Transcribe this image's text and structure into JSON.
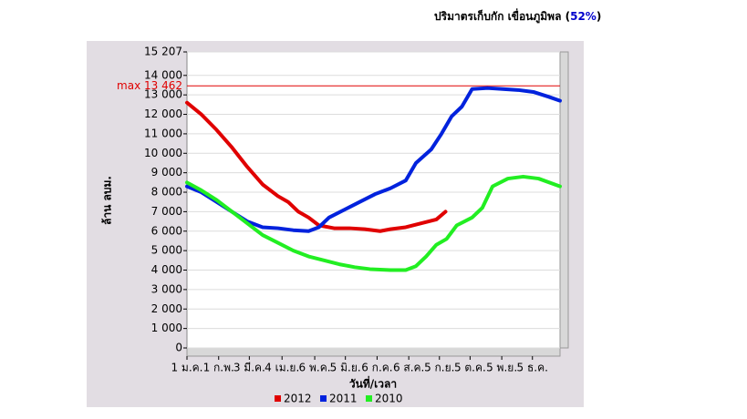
{
  "chart_data": {
    "type": "line",
    "title_parts": [
      "ปริมาตรเก็บกัก เขื่อนภูมิพล (",
      "52%",
      ")"
    ],
    "ylabel": "ล้าน ลบม.",
    "xlabel": "วันที่/เวลา",
    "xlim": [
      1,
      366
    ],
    "xticks": [
      {
        "value": 1,
        "label": "1 ม.ค."
      },
      {
        "value": 32,
        "label": "1 ก.พ."
      },
      {
        "value": 62,
        "label": "3 มี.ค."
      },
      {
        "value": 94,
        "label": "4 เม.ย."
      },
      {
        "value": 126,
        "label": "6 พ.ค."
      },
      {
        "value": 156,
        "label": "5 มิ.ย."
      },
      {
        "value": 187,
        "label": "6 ก.ค."
      },
      {
        "value": 218,
        "label": "6 ส.ค."
      },
      {
        "value": 248,
        "label": "5 ก.ย."
      },
      {
        "value": 278,
        "label": "5 ต.ค."
      },
      {
        "value": 309,
        "label": "5 พ.ย."
      },
      {
        "value": 339,
        "label": "5 ธ.ค."
      }
    ],
    "ylim": [
      0,
      15207
    ],
    "yticks": [
      0,
      {
        "value": 1000,
        "label": "1 000"
      },
      {
        "value": 2000,
        "label": "2 000"
      },
      {
        "value": 3000,
        "label": "3 000"
      },
      {
        "value": 4000,
        "label": "4 000"
      },
      {
        "value": 5000,
        "label": "5 000"
      },
      {
        "value": 6000,
        "label": "6 000"
      },
      {
        "value": 7000,
        "label": "7 000"
      },
      {
        "value": 8000,
        "label": "8 000"
      },
      {
        "value": 9000,
        "label": "9 000"
      },
      {
        "value": 10000,
        "label": "10 000"
      },
      {
        "value": 11000,
        "label": "11 000"
      },
      {
        "value": 12000,
        "label": "12 000"
      },
      {
        "value": 13000,
        "label": "13 000"
      },
      {
        "value": 14000,
        "label": "14 000"
      },
      {
        "value": 15207,
        "label": "15 207"
      }
    ],
    "grid": true,
    "max_line": {
      "value": 13462,
      "label": "max 13 462",
      "color": "#e00000"
    },
    "series": [
      {
        "name": "2012",
        "color": "#e00000",
        "x": [
          1,
          15,
          30,
          45,
          60,
          75,
          90,
          100,
          110,
          120,
          130,
          145,
          160,
          175,
          190,
          200,
          215,
          230,
          245,
          254
        ],
        "values": [
          12600,
          12000,
          11200,
          10300,
          9300,
          8400,
          7800,
          7500,
          7000,
          6700,
          6300,
          6150,
          6150,
          6100,
          6000,
          6100,
          6200,
          6400,
          6600,
          7000
        ]
      },
      {
        "name": "2011",
        "color": "#0022dd",
        "x": [
          1,
          15,
          30,
          45,
          60,
          75,
          90,
          105,
          120,
          130,
          140,
          155,
          170,
          185,
          200,
          215,
          225,
          240,
          250,
          260,
          270,
          280,
          295,
          310,
          325,
          340,
          355,
          366
        ],
        "values": [
          8300,
          8000,
          7500,
          7000,
          6500,
          6200,
          6150,
          6050,
          6000,
          6200,
          6700,
          7100,
          7500,
          7900,
          8200,
          8600,
          9500,
          10200,
          11000,
          11900,
          12400,
          13300,
          13350,
          13300,
          13250,
          13150,
          12900,
          12700
        ]
      },
      {
        "name": "2010",
        "color": "#22ee22",
        "x": [
          1,
          15,
          30,
          45,
          60,
          75,
          90,
          105,
          120,
          135,
          150,
          165,
          180,
          200,
          215,
          225,
          235,
          245,
          255,
          265,
          280,
          290,
          300,
          315,
          330,
          345,
          366
        ],
        "values": [
          8500,
          8100,
          7600,
          7000,
          6400,
          5800,
          5400,
          5000,
          4700,
          4500,
          4300,
          4150,
          4050,
          4000,
          4000,
          4200,
          4700,
          5300,
          5600,
          6300,
          6700,
          7200,
          8300,
          8700,
          8800,
          8700,
          8300
        ]
      }
    ]
  }
}
